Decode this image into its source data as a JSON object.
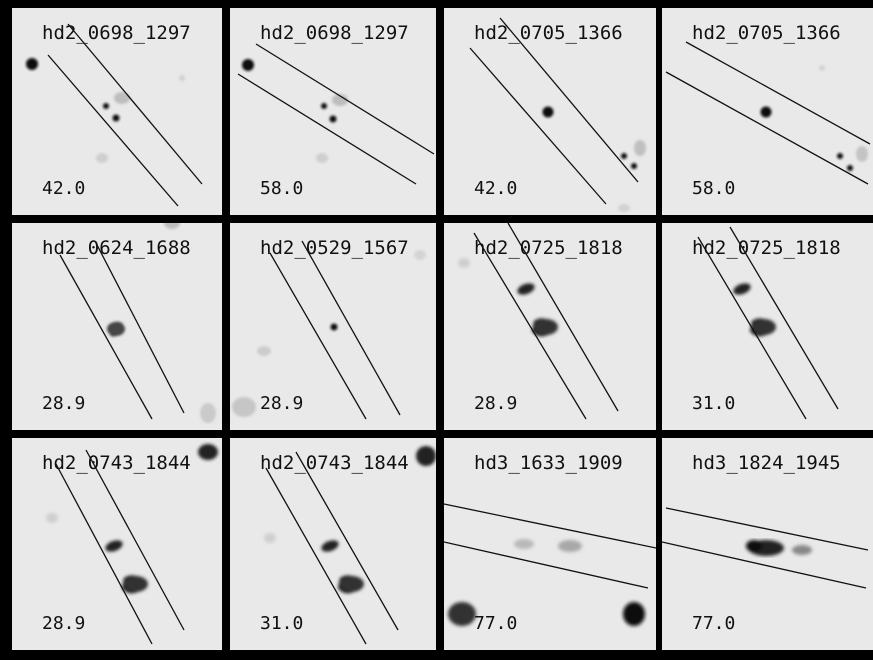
{
  "panels": [
    {
      "name": "hd2_0698_1297",
      "angle": "42.0"
    },
    {
      "name": "hd2_0698_1297",
      "angle": "58.0"
    },
    {
      "name": "hd2_0705_1366",
      "angle": "42.0"
    },
    {
      "name": "hd2_0705_1366",
      "angle": "58.0"
    },
    {
      "name": "hd2_0624_1688",
      "angle": "28.9"
    },
    {
      "name": "hd2_0529_1567",
      "angle": "28.9"
    },
    {
      "name": "hd2_0725_1818",
      "angle": "28.9"
    },
    {
      "name": "hd2_0725_1818",
      "angle": "31.0"
    },
    {
      "name": "hd2_0743_1844",
      "angle": "28.9"
    },
    {
      "name": "hd2_0743_1844",
      "angle": "31.0"
    },
    {
      "name": "hd3_1633_1909",
      "angle": "77.0"
    },
    {
      "name": "hd3_1824_1945",
      "angle": "77.0"
    }
  ]
}
